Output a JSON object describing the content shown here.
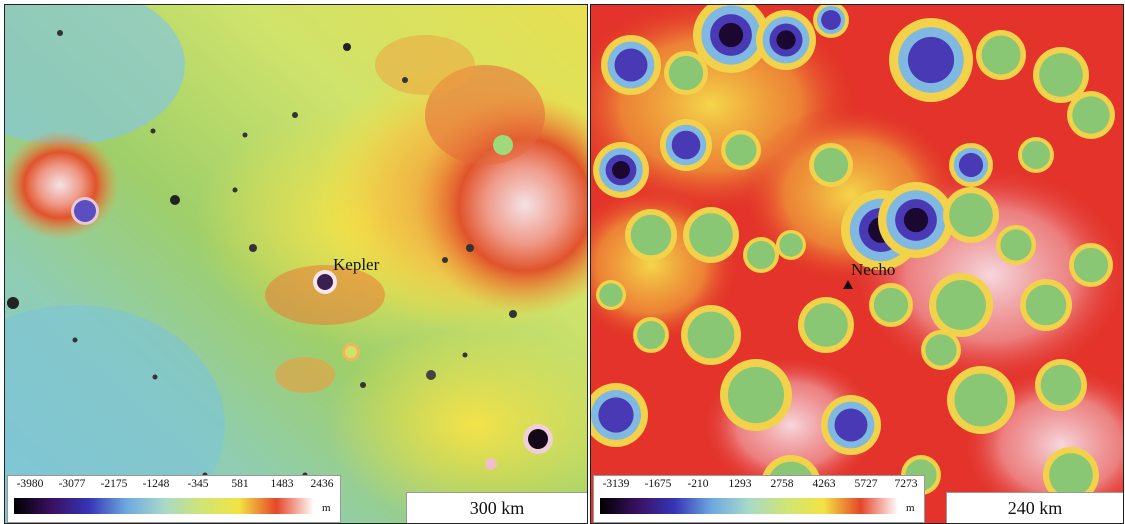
{
  "left_map": {
    "feature_label": "Kepler",
    "legend": {
      "ticks": [
        "-3980",
        "-3077",
        "-2175",
        "-1248",
        "-345",
        "581",
        "1483",
        "2436"
      ],
      "unit": "m"
    },
    "scale": "300 km",
    "colors": {
      "base_low": "#7fc6d8",
      "base_mid": "#9ecf6a",
      "base_high": "#e8e050",
      "highland": "#e0532b",
      "peak": "#f4e2e6",
      "crater": "#4b3fb8"
    }
  },
  "right_map": {
    "feature_label": "Necho",
    "legend": {
      "ticks": [
        "-3139",
        "-1675",
        "-210",
        "1293",
        "2758",
        "4263",
        "5727",
        "7273"
      ],
      "unit": "m"
    },
    "scale": "240 km",
    "colors": {
      "base": "#e3332a",
      "bright": "#f6d7dc",
      "crater_floor": "#89c774",
      "crater_deep": "#4a39b5",
      "crater_deepest": "#1a0830"
    }
  },
  "colorbar_stops": [
    "#000000",
    "#3a1060",
    "#3535b5",
    "#6da9e0",
    "#a8d9c8",
    "#cfe575",
    "#f2e343",
    "#e6462a",
    "#ffffff"
  ]
}
